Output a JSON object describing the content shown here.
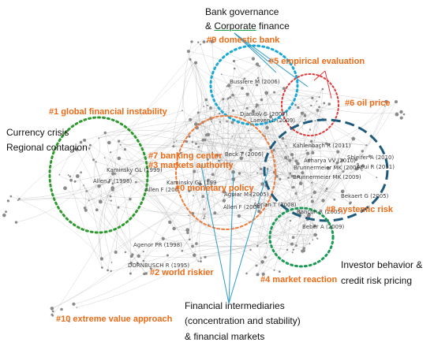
{
  "colors": {
    "cluster_label": "#ee6a16",
    "edge": "#9a9a9a",
    "node": "#8a8a8a",
    "cluster1_ring": "#2e9a2e",
    "cluster4_ring": "#1a9a55",
    "cluster9_ring": "#1aa8d6",
    "cluster5_ring": "#e23838",
    "cluster8_ring": "#1f5a7a",
    "cluster0_ring": "#f07a3a",
    "annotation_text": "#111111",
    "callout_line": "#2f9ac7"
  },
  "clusters": {
    "c0": "#0 monetary policy",
    "c1": "#1 global financial instability",
    "c2": "#2 world riskier",
    "c3": "#3 markets authority",
    "c4": "#4 market reaction",
    "c5": "#5 empirical evaluation",
    "c6": "#6 oil price",
    "c7": "#7 banking center",
    "c8": "#8 systemic risk",
    "c9": "#9 domestic bank",
    "c10": "#10 extreme value approach"
  },
  "authors": {
    "bussiere": "Bussiere M (2006)",
    "djankov": "Djankov S (2007)",
    "laeven": "Laeven L (2009)",
    "beck": "Beck T (2006)",
    "kaminsky": "Kaminsky GL (1999)",
    "allen1998": "Allen F (1998)",
    "allen_mid": "Allen F (200",
    "kaminsky2": "Kaminsky GL (199",
    "aguiar": "Aguiar M (2005)",
    "allen2004": "Allen F (2004)",
    "adrian": "Adrian T (2008)",
    "kahlenbach": "Kahlenbach R (2011)",
    "acharya": "Acharya VV (2010)",
    "shleifer": "Shleifer A (2010)",
    "aoui": "Aoui R (2011)",
    "brunnermeier_a": "Brunnermeier MK (2009)",
    "brunnermeier_b": "Brunnermeier MK (2009)",
    "bekaert": "Bekaert G (2005)",
    "rancon": "Rancon R (2005)",
    "beber": "Beber A (2009)",
    "agenor": "Agenor PR (1998)",
    "dornbusch": "DORNBUSCH R (1995)"
  },
  "annotations": {
    "bank_gov_1": "Bank governance",
    "bank_gov_2_prefix": "& ",
    "bank_gov_2_underlined": "Corporate",
    "bank_gov_2_suffix": " finance",
    "currency_1": "Currency crisis",
    "currency_2": "Regional contagion",
    "investor_1": "Investor behavior &",
    "investor_2": "credit risk pricing",
    "fin_int_1": "Financial intermediaries",
    "fin_int_2": "(concentration and stability)",
    "fin_int_3": "& financial markets"
  }
}
